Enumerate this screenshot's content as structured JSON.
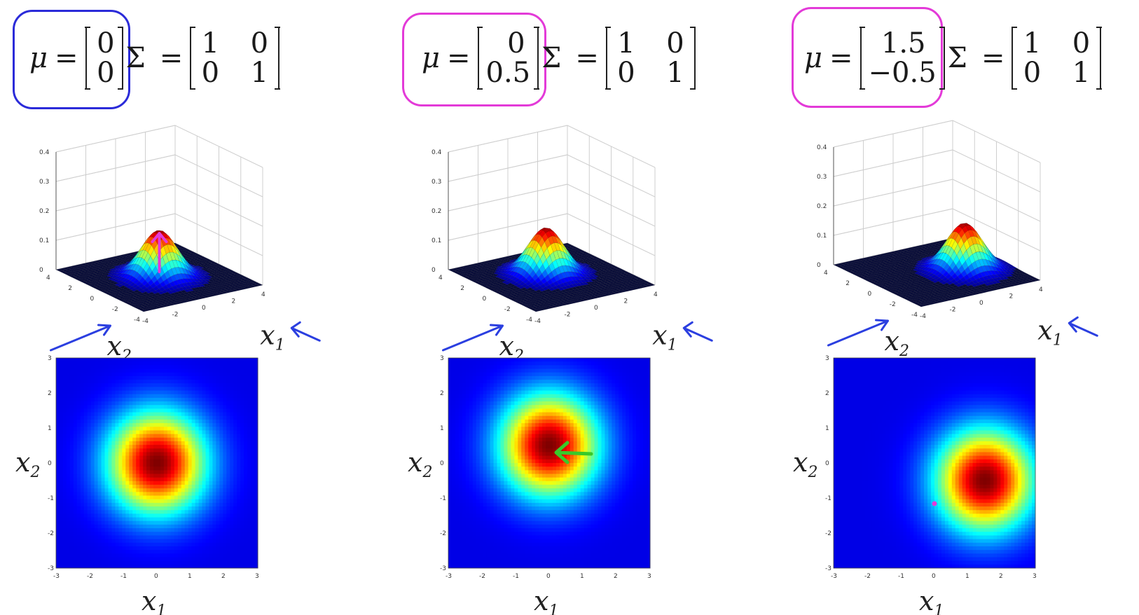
{
  "panels": [
    {
      "mu": [
        "0",
        "0"
      ],
      "sigma": [
        [
          "1",
          "0"
        ],
        [
          "0",
          "1"
        ]
      ],
      "mu_circle_color": "#2b2bd9",
      "mean": [
        0,
        0
      ],
      "surface_ticks": {
        "z": [
          "0.4",
          "0.3",
          "0.2",
          "0.1",
          "0"
        ],
        "x2": [
          "4",
          "2",
          "0",
          "-2",
          "-4"
        ],
        "x1": [
          "-4",
          "-2",
          "0",
          "2",
          "4"
        ]
      },
      "contour_ticks": {
        "y": [
          "3",
          "2",
          "1",
          "0",
          "-1",
          "-2",
          "-3"
        ],
        "x": [
          "-3",
          "-2",
          "-1",
          "0",
          "1",
          "2",
          "3"
        ]
      }
    },
    {
      "mu": [
        "0",
        "0.5"
      ],
      "sigma": [
        [
          "1",
          "0"
        ],
        [
          "0",
          "1"
        ]
      ],
      "mu_circle_color": "#e33ad8",
      "mean": [
        0,
        0.5
      ],
      "surface_ticks": {
        "z": [
          "0.4",
          "0.3",
          "0.2",
          "0.1",
          "0"
        ],
        "x2": [
          "4",
          "2",
          "0",
          "-2",
          "-4"
        ],
        "x1": [
          "-4",
          "-2",
          "0",
          "2",
          "4"
        ]
      },
      "contour_ticks": {
        "y": [
          "3",
          "2",
          "1",
          "0",
          "-1",
          "-2",
          "-3"
        ],
        "x": [
          "-3",
          "-2",
          "-1",
          "0",
          "1",
          "2",
          "3"
        ]
      }
    },
    {
      "mu": [
        "1.5",
        "−0.5"
      ],
      "sigma": [
        [
          "1",
          "0"
        ],
        [
          "0",
          "1"
        ]
      ],
      "mu_circle_color": "#e33ad8",
      "mean": [
        1.5,
        -0.5
      ],
      "surface_ticks": {
        "z": [
          "0.4",
          "0.3",
          "0.2",
          "0.1",
          "0"
        ],
        "x2": [
          "4",
          "2",
          "0",
          "-2",
          "-4"
        ],
        "x1": [
          "-4",
          "-2",
          "0",
          "2",
          "4"
        ]
      },
      "contour_ticks": {
        "y": [
          "3",
          "2",
          "1",
          "0",
          "-1",
          "-2",
          "-3"
        ],
        "x": [
          "-3",
          "-2",
          "-1",
          "0",
          "1",
          "2",
          "3"
        ]
      }
    }
  ],
  "labels": {
    "mu_symbol": "μ",
    "sigma_symbol": "Σ",
    "equals": "=",
    "x1": "x",
    "x1_sub": "1",
    "x2": "x",
    "x2_sub": "2"
  },
  "colors": {
    "surface_low": "#0a0f6e",
    "surface_high": "#b00000",
    "annotation_blue": "#2b3fe0",
    "annotation_pink": "#e33ad8",
    "annotation_green": "#39c92a"
  }
}
